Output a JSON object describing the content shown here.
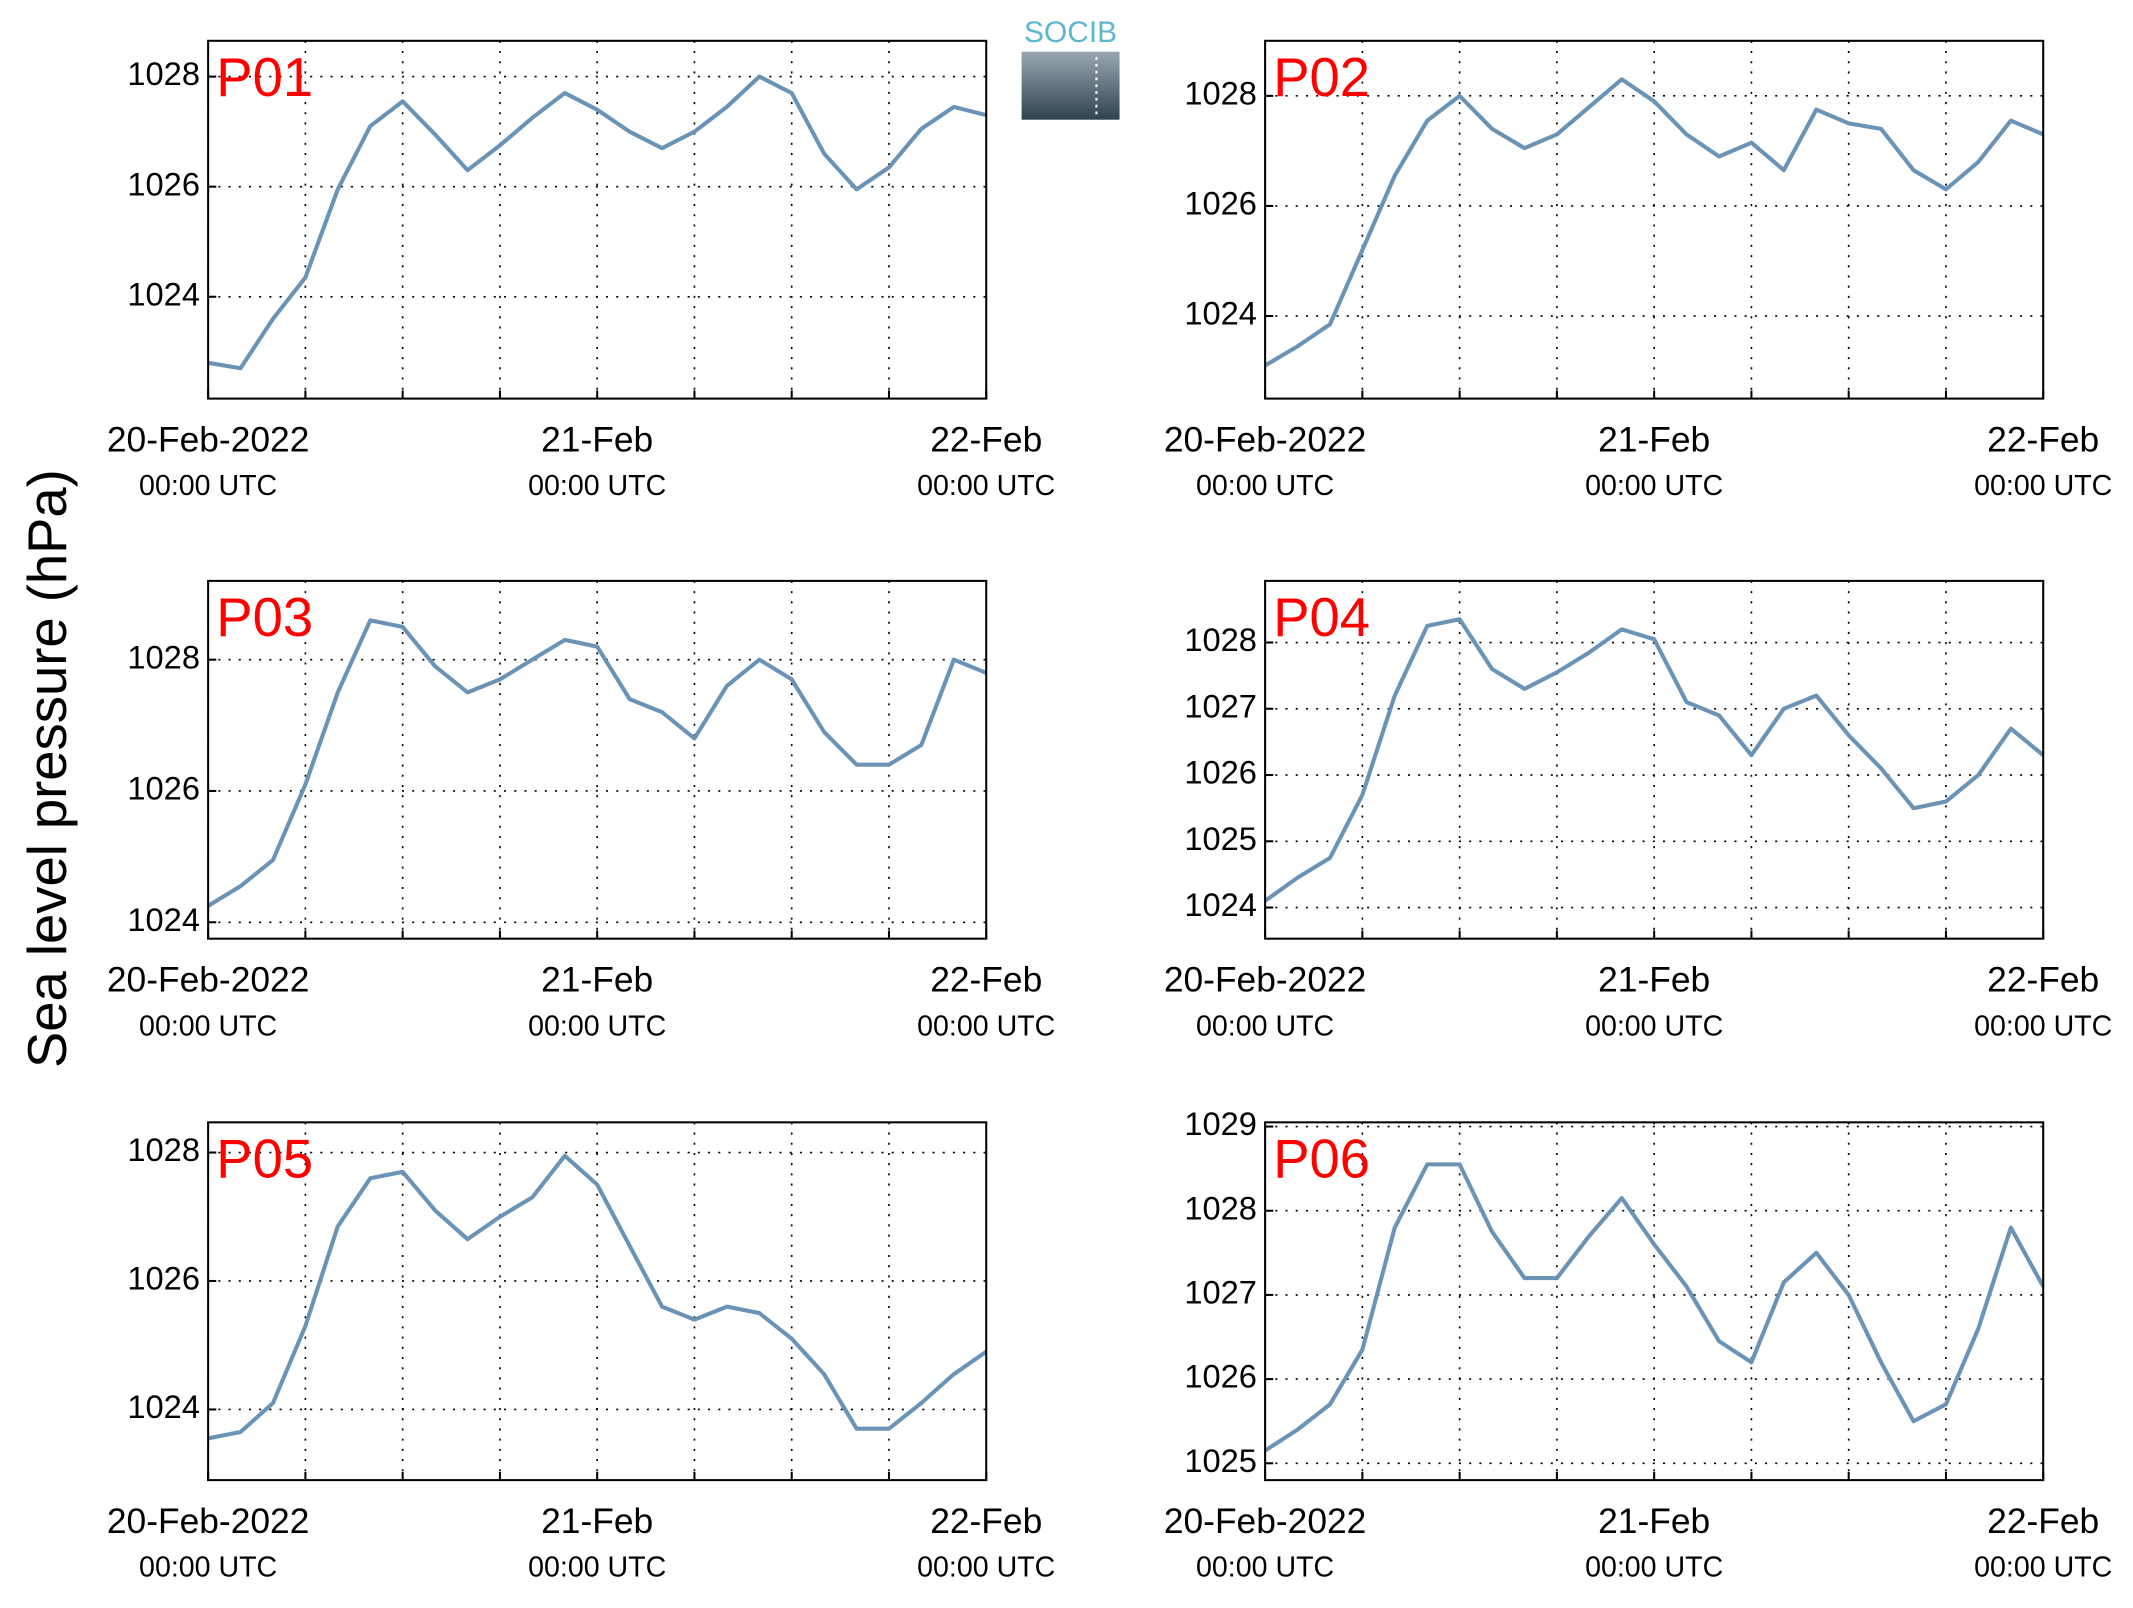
{
  "ylabel": "Sea level pressure (hPa)",
  "logo": "SOCIB",
  "chart_data": [
    {
      "type": "line",
      "title": "P01",
      "color": "#6a93b6",
      "grid": true,
      "x": [
        "2022-02-20 00:00",
        "2022-02-20 02:00",
        "2022-02-20 04:00",
        "2022-02-20 06:00",
        "2022-02-20 08:00",
        "2022-02-20 10:00",
        "2022-02-20 12:00",
        "2022-02-20 14:00",
        "2022-02-20 16:00",
        "2022-02-20 18:00",
        "2022-02-20 20:00",
        "2022-02-20 22:00",
        "2022-02-21 00:00",
        "2022-02-21 02:00",
        "2022-02-21 04:00",
        "2022-02-21 06:00",
        "2022-02-21 08:00",
        "2022-02-21 10:00",
        "2022-02-21 12:00",
        "2022-02-21 14:00",
        "2022-02-21 16:00",
        "2022-02-21 18:00",
        "2022-02-21 20:00",
        "2022-02-21 22:00",
        "2022-02-22 00:00"
      ],
      "values": [
        1022.8,
        1022.7,
        1023.6,
        1024.35,
        1025.95,
        1027.1,
        1027.55,
        1026.95,
        1026.3,
        1026.75,
        1027.25,
        1027.7,
        1027.4,
        1027.0,
        1026.7,
        1027.0,
        1027.45,
        1028.0,
        1027.7,
        1026.6,
        1025.95,
        1026.35,
        1027.05,
        1027.45,
        1027.3
      ],
      "xlim": [
        "2022-02-20 00:00",
        "2022-02-22 00:00"
      ],
      "xticks": [
        {
          "value": "2022-02-20 00:00",
          "label": "20-Feb-2022\n00:00 UTC"
        },
        {
          "value": "2022-02-21 00:00",
          "label": "21-Feb\n00:00 UTC"
        },
        {
          "value": "2022-02-22 00:00",
          "label": "22-Feb\n00:00 UTC"
        }
      ],
      "xminorticks": [
        "2022-02-20 06:00",
        "2022-02-20 12:00",
        "2022-02-20 18:00",
        "2022-02-21 06:00",
        "2022-02-21 12:00",
        "2022-02-21 18:00"
      ],
      "ylim": [
        1022.15,
        1028.65
      ],
      "yticks": [
        1024,
        1026,
        1028
      ]
    },
    {
      "type": "line",
      "title": "P02",
      "color": "#6a93b6",
      "grid": true,
      "x": [
        "2022-02-20 00:00",
        "2022-02-20 02:00",
        "2022-02-20 04:00",
        "2022-02-20 06:00",
        "2022-02-20 08:00",
        "2022-02-20 10:00",
        "2022-02-20 12:00",
        "2022-02-20 14:00",
        "2022-02-20 16:00",
        "2022-02-20 18:00",
        "2022-02-20 20:00",
        "2022-02-20 22:00",
        "2022-02-21 00:00",
        "2022-02-21 02:00",
        "2022-02-21 04:00",
        "2022-02-21 06:00",
        "2022-02-21 08:00",
        "2022-02-21 10:00",
        "2022-02-21 12:00",
        "2022-02-21 14:00",
        "2022-02-21 16:00",
        "2022-02-21 18:00",
        "2022-02-21 20:00",
        "2022-02-21 22:00",
        "2022-02-22 00:00"
      ],
      "values": [
        1023.1,
        1023.45,
        1023.85,
        1025.2,
        1026.55,
        1027.55,
        1028.0,
        1027.4,
        1027.05,
        1027.3,
        1027.8,
        1028.3,
        1027.9,
        1027.3,
        1026.9,
        1027.15,
        1026.65,
        1027.75,
        1027.5,
        1027.4,
        1026.65,
        1026.3,
        1026.8,
        1027.55,
        1027.3
      ],
      "xlim": [
        "2022-02-20 00:00",
        "2022-02-22 00:00"
      ],
      "xticks": [
        {
          "value": "2022-02-20 00:00",
          "label": "20-Feb-2022\n00:00 UTC"
        },
        {
          "value": "2022-02-21 00:00",
          "label": "21-Feb\n00:00 UTC"
        },
        {
          "value": "2022-02-22 00:00",
          "label": "22-Feb\n00:00 UTC"
        }
      ],
      "xminorticks": [
        "2022-02-20 06:00",
        "2022-02-20 12:00",
        "2022-02-20 18:00",
        "2022-02-21 06:00",
        "2022-02-21 12:00",
        "2022-02-21 18:00"
      ],
      "ylim": [
        1022.5,
        1029.0
      ],
      "yticks": [
        1024,
        1026,
        1028
      ]
    },
    {
      "type": "line",
      "title": "P03",
      "color": "#6a93b6",
      "grid": true,
      "x": [
        "2022-02-20 00:00",
        "2022-02-20 02:00",
        "2022-02-20 04:00",
        "2022-02-20 06:00",
        "2022-02-20 08:00",
        "2022-02-20 10:00",
        "2022-02-20 12:00",
        "2022-02-20 14:00",
        "2022-02-20 16:00",
        "2022-02-20 18:00",
        "2022-02-20 20:00",
        "2022-02-20 22:00",
        "2022-02-21 00:00",
        "2022-02-21 02:00",
        "2022-02-21 04:00",
        "2022-02-21 06:00",
        "2022-02-21 08:00",
        "2022-02-21 10:00",
        "2022-02-21 12:00",
        "2022-02-21 14:00",
        "2022-02-21 16:00",
        "2022-02-21 18:00",
        "2022-02-21 20:00",
        "2022-02-21 22:00",
        "2022-02-22 00:00"
      ],
      "values": [
        1024.25,
        1024.55,
        1024.95,
        1026.1,
        1027.5,
        1028.6,
        1028.5,
        1027.9,
        1027.5,
        1027.7,
        1028.0,
        1028.3,
        1028.2,
        1027.4,
        1027.2,
        1026.8,
        1027.6,
        1028.0,
        1027.7,
        1026.9,
        1026.4,
        1026.4,
        1026.7,
        1028.0,
        1027.8
      ],
      "xlim": [
        "2022-02-20 00:00",
        "2022-02-22 00:00"
      ],
      "xticks": [
        {
          "value": "2022-02-20 00:00",
          "label": "20-Feb-2022\n00:00 UTC"
        },
        {
          "value": "2022-02-21 00:00",
          "label": "21-Feb\n00:00 UTC"
        },
        {
          "value": "2022-02-22 00:00",
          "label": "22-Feb\n00:00 UTC"
        }
      ],
      "xminorticks": [
        "2022-02-20 06:00",
        "2022-02-20 12:00",
        "2022-02-20 18:00",
        "2022-02-21 06:00",
        "2022-02-21 12:00",
        "2022-02-21 18:00"
      ],
      "ylim": [
        1023.75,
        1029.2
      ],
      "yticks": [
        1024,
        1026,
        1028
      ]
    },
    {
      "type": "line",
      "title": "P04",
      "color": "#6a93b6",
      "grid": true,
      "x": [
        "2022-02-20 00:00",
        "2022-02-20 02:00",
        "2022-02-20 04:00",
        "2022-02-20 06:00",
        "2022-02-20 08:00",
        "2022-02-20 10:00",
        "2022-02-20 12:00",
        "2022-02-20 14:00",
        "2022-02-20 16:00",
        "2022-02-20 18:00",
        "2022-02-20 20:00",
        "2022-02-20 22:00",
        "2022-02-21 00:00",
        "2022-02-21 02:00",
        "2022-02-21 04:00",
        "2022-02-21 06:00",
        "2022-02-21 08:00",
        "2022-02-21 10:00",
        "2022-02-21 12:00",
        "2022-02-21 14:00",
        "2022-02-21 16:00",
        "2022-02-21 18:00",
        "2022-02-21 20:00",
        "2022-02-21 22:00",
        "2022-02-22 00:00"
      ],
      "values": [
        1024.1,
        1024.45,
        1024.75,
        1025.7,
        1027.2,
        1028.25,
        1028.35,
        1027.6,
        1027.3,
        1027.55,
        1027.85,
        1028.2,
        1028.05,
        1027.1,
        1026.9,
        1026.3,
        1027.0,
        1027.2,
        1026.6,
        1026.1,
        1025.5,
        1025.6,
        1026.0,
        1026.7,
        1026.3
      ],
      "xlim": [
        "2022-02-20 00:00",
        "2022-02-22 00:00"
      ],
      "xticks": [
        {
          "value": "2022-02-20 00:00",
          "label": "20-Feb-2022\n00:00 UTC"
        },
        {
          "value": "2022-02-21 00:00",
          "label": "21-Feb\n00:00 UTC"
        },
        {
          "value": "2022-02-22 00:00",
          "label": "22-Feb\n00:00 UTC"
        }
      ],
      "xminorticks": [
        "2022-02-20 06:00",
        "2022-02-20 12:00",
        "2022-02-20 18:00",
        "2022-02-21 06:00",
        "2022-02-21 12:00",
        "2022-02-21 18:00"
      ],
      "ylim": [
        1023.53,
        1028.93
      ],
      "yticks": [
        1024,
        1025,
        1026,
        1027,
        1028
      ]
    },
    {
      "type": "line",
      "title": "P05",
      "color": "#6a93b6",
      "grid": true,
      "x": [
        "2022-02-20 00:00",
        "2022-02-20 02:00",
        "2022-02-20 04:00",
        "2022-02-20 06:00",
        "2022-02-20 08:00",
        "2022-02-20 10:00",
        "2022-02-20 12:00",
        "2022-02-20 14:00",
        "2022-02-20 16:00",
        "2022-02-20 18:00",
        "2022-02-20 20:00",
        "2022-02-20 22:00",
        "2022-02-21 00:00",
        "2022-02-21 02:00",
        "2022-02-21 04:00",
        "2022-02-21 06:00",
        "2022-02-21 08:00",
        "2022-02-21 10:00",
        "2022-02-21 12:00",
        "2022-02-21 14:00",
        "2022-02-21 16:00",
        "2022-02-21 18:00",
        "2022-02-21 20:00",
        "2022-02-21 22:00",
        "2022-02-22 00:00"
      ],
      "values": [
        1023.55,
        1023.65,
        1024.1,
        1025.3,
        1026.85,
        1027.6,
        1027.7,
        1027.1,
        1026.65,
        1027.0,
        1027.3,
        1027.95,
        1027.5,
        1026.55,
        1025.6,
        1025.4,
        1025.6,
        1025.5,
        1025.1,
        1024.55,
        1023.7,
        1023.7,
        1024.1,
        1024.55,
        1024.9
      ],
      "xlim": [
        "2022-02-20 00:00",
        "2022-02-22 00:00"
      ],
      "xticks": [
        {
          "value": "2022-02-20 00:00",
          "label": "20-Feb-2022\n00:00 UTC"
        },
        {
          "value": "2022-02-21 00:00",
          "label": "21-Feb\n00:00 UTC"
        },
        {
          "value": "2022-02-22 00:00",
          "label": "22-Feb\n00:00 UTC"
        }
      ],
      "xminorticks": [
        "2022-02-20 06:00",
        "2022-02-20 12:00",
        "2022-02-20 18:00",
        "2022-02-21 06:00",
        "2022-02-21 12:00",
        "2022-02-21 18:00"
      ],
      "ylim": [
        1022.9,
        1028.47
      ],
      "yticks": [
        1024,
        1026,
        1028
      ]
    },
    {
      "type": "line",
      "title": "P06",
      "color": "#6a93b6",
      "grid": true,
      "x": [
        "2022-02-20 00:00",
        "2022-02-20 02:00",
        "2022-02-20 04:00",
        "2022-02-20 06:00",
        "2022-02-20 08:00",
        "2022-02-20 10:00",
        "2022-02-20 12:00",
        "2022-02-20 14:00",
        "2022-02-20 16:00",
        "2022-02-20 18:00",
        "2022-02-20 20:00",
        "2022-02-20 22:00",
        "2022-02-21 00:00",
        "2022-02-21 02:00",
        "2022-02-21 04:00",
        "2022-02-21 06:00",
        "2022-02-21 08:00",
        "2022-02-21 10:00",
        "2022-02-21 12:00",
        "2022-02-21 14:00",
        "2022-02-21 16:00",
        "2022-02-21 18:00",
        "2022-02-21 20:00",
        "2022-02-21 22:00",
        "2022-02-22 00:00"
      ],
      "values": [
        1025.15,
        1025.4,
        1025.7,
        1026.35,
        1027.8,
        1028.55,
        1028.55,
        1027.75,
        1027.2,
        1027.2,
        1027.7,
        1028.15,
        1027.6,
        1027.1,
        1026.45,
        1026.2,
        1027.15,
        1027.5,
        1027.0,
        1026.2,
        1025.5,
        1025.7,
        1026.6,
        1027.8,
        1027.1
      ],
      "xlim": [
        "2022-02-20 00:00",
        "2022-02-22 00:00"
      ],
      "xticks": [
        {
          "value": "2022-02-20 00:00",
          "label": "20-Feb-2022\n00:00 UTC"
        },
        {
          "value": "2022-02-21 00:00",
          "label": "21-Feb\n00:00 UTC"
        },
        {
          "value": "2022-02-22 00:00",
          "label": "22-Feb\n00:00 UTC"
        }
      ],
      "xminorticks": [
        "2022-02-20 06:00",
        "2022-02-20 12:00",
        "2022-02-20 18:00",
        "2022-02-21 06:00",
        "2022-02-21 12:00",
        "2022-02-21 18:00"
      ],
      "ylim": [
        1024.8,
        1029.05
      ],
      "yticks": [
        1025,
        1026,
        1027,
        1028,
        1029
      ]
    }
  ]
}
